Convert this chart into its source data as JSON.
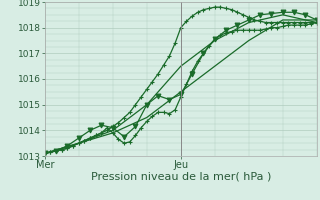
{
  "background_color": "#d8ede4",
  "grid_color": "#b0ccbe",
  "line_color": "#1a6b2a",
  "xlim": [
    0,
    48
  ],
  "ylim": [
    1013.0,
    1019.0
  ],
  "yticks": [
    1013,
    1014,
    1015,
    1016,
    1017,
    1018,
    1019
  ],
  "xlabel": "Pression niveau de la mer( hPa )",
  "xlabel_fontsize": 8,
  "xtick_labels": [
    "Mer",
    "Jeu"
  ],
  "xtick_positions": [
    0,
    24
  ],
  "vline_x": 24,
  "series": [
    {
      "x": [
        0,
        1,
        2,
        3,
        4,
        5,
        6,
        7,
        8,
        9,
        10,
        11,
        12,
        13,
        14,
        15,
        16,
        17,
        18,
        19,
        20,
        21,
        22,
        23,
        24,
        25,
        26,
        27,
        28,
        29,
        30,
        31,
        32,
        33,
        34,
        35,
        36,
        37,
        38,
        39,
        40,
        41,
        42,
        43,
        44,
        45,
        46,
        47,
        48
      ],
      "y": [
        1013.1,
        1013.15,
        1013.2,
        1013.25,
        1013.3,
        1013.4,
        1013.5,
        1013.6,
        1013.7,
        1013.8,
        1013.9,
        1014.0,
        1014.15,
        1014.3,
        1014.5,
        1014.7,
        1015.0,
        1015.3,
        1015.6,
        1015.9,
        1016.2,
        1016.55,
        1016.9,
        1017.4,
        1018.0,
        1018.25,
        1018.45,
        1018.6,
        1018.7,
        1018.75,
        1018.8,
        1018.8,
        1018.75,
        1018.7,
        1018.6,
        1018.5,
        1018.4,
        1018.3,
        1018.25,
        1018.2,
        1018.2,
        1018.2,
        1018.2,
        1018.2,
        1018.2,
        1018.2,
        1018.2,
        1018.2,
        1018.2
      ],
      "marker": "+",
      "markersize": 3.5,
      "linewidth": 0.9
    },
    {
      "x": [
        0,
        1,
        2,
        3,
        4,
        5,
        6,
        7,
        8,
        9,
        10,
        11,
        12,
        13,
        14,
        15,
        16,
        17,
        18,
        19,
        20,
        21,
        22,
        23,
        24,
        25,
        26,
        27,
        28,
        29,
        30,
        31,
        32,
        33,
        34,
        35,
        36,
        37,
        38,
        39,
        40,
        41,
        42,
        43,
        44,
        45,
        46,
        47,
        48
      ],
      "y": [
        1013.1,
        1013.15,
        1013.2,
        1013.25,
        1013.3,
        1013.4,
        1013.5,
        1013.6,
        1013.7,
        1013.8,
        1013.9,
        1014.1,
        1013.9,
        1013.65,
        1013.5,
        1013.55,
        1013.8,
        1014.1,
        1014.35,
        1014.55,
        1014.7,
        1014.7,
        1014.65,
        1014.8,
        1015.3,
        1015.8,
        1016.3,
        1016.7,
        1017.0,
        1017.3,
        1017.55,
        1017.7,
        1017.8,
        1017.85,
        1017.9,
        1017.9,
        1017.9,
        1017.9,
        1017.9,
        1017.95,
        1018.0,
        1018.0,
        1018.05,
        1018.1,
        1018.1,
        1018.1,
        1018.1,
        1018.15,
        1018.2
      ],
      "marker": "+",
      "markersize": 3.5,
      "linewidth": 0.9
    },
    {
      "x": [
        0,
        2,
        4,
        6,
        8,
        10,
        12,
        14,
        16,
        18,
        20,
        22,
        24,
        26,
        28,
        30,
        32,
        34,
        36,
        38,
        40,
        42,
        44,
        46,
        48
      ],
      "y": [
        1013.1,
        1013.2,
        1013.4,
        1013.7,
        1014.0,
        1014.2,
        1014.1,
        1013.75,
        1014.15,
        1015.0,
        1015.35,
        1015.2,
        1015.4,
        1016.2,
        1017.0,
        1017.55,
        1017.9,
        1018.1,
        1018.3,
        1018.5,
        1018.55,
        1018.6,
        1018.6,
        1018.5,
        1018.3
      ],
      "marker": "v",
      "markersize": 3.5,
      "linewidth": 0.9
    },
    {
      "x": [
        0,
        6,
        12,
        18,
        24,
        30,
        36,
        42,
        48
      ],
      "y": [
        1013.1,
        1013.5,
        1014.0,
        1015.0,
        1016.5,
        1017.5,
        1018.2,
        1018.5,
        1018.2
      ],
      "marker": null,
      "linewidth": 0.9
    },
    {
      "x": [
        0,
        6,
        12,
        18,
        24,
        30,
        36,
        42,
        48
      ],
      "y": [
        1013.1,
        1013.5,
        1013.9,
        1014.5,
        1015.5,
        1016.5,
        1017.5,
        1018.3,
        1018.3
      ],
      "marker": null,
      "linewidth": 0.9
    }
  ]
}
